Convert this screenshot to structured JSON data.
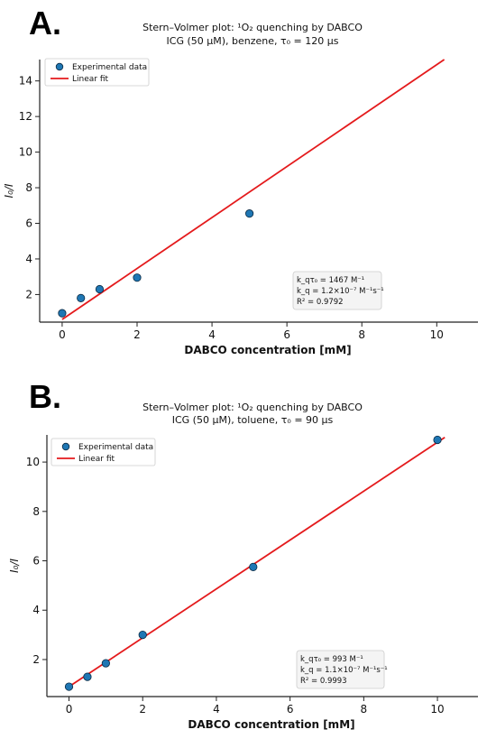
{
  "colors": {
    "points": "#1f77b4",
    "point_edge": "#0a2a44",
    "fit_line": "#e41a1c",
    "axis": "#222222",
    "legend_border": "#cccccc",
    "annotation_bg": "#f4f4f4"
  },
  "chart_data": [
    {
      "type": "scatter",
      "panel_label": "A.",
      "title_line1": "Stern–Volmer plot: ¹O₂ quenching by DABCO",
      "title_line2": "ICG (50 μM), benzene, τ₀ = 120 μs",
      "xlabel": "DABCO concentration [mM]",
      "ylabel": "I₀/I",
      "xlim": [
        -0.6,
        11.1
      ],
      "ylim": [
        0.45,
        15.2
      ],
      "xticks": [
        0,
        2,
        4,
        6,
        8,
        10
      ],
      "yticks": [
        2,
        4,
        6,
        8,
        10,
        12,
        14
      ],
      "grid": false,
      "legend_position": "top-left",
      "series": [
        {
          "name": "Experimental data",
          "kind": "scatter",
          "x": [
            0,
            0.5,
            1,
            2,
            5
          ],
          "y": [
            0.95,
            1.8,
            2.3,
            2.95,
            6.55
          ]
        },
        {
          "name": "Linear fit",
          "kind": "line",
          "x": [
            0,
            10.2
          ],
          "y": [
            0.6,
            15.2
          ]
        }
      ],
      "annotation": [
        "k_qτ₀ = 1467 M⁻¹",
        "k_q = 1.2×10⁻⁷ M⁻¹s⁻¹",
        "R² = 0.9792"
      ]
    },
    {
      "type": "scatter",
      "panel_label": "B.",
      "title_line1": "Stern–Volmer plot: ¹O₂ quenching by DABCO",
      "title_line2": "ICG (50 μM), toluene, τ₀ = 90 μs",
      "xlabel": "DABCO concentration [mM]",
      "ylabel": "I₀/I",
      "xlim": [
        -0.6,
        11.1
      ],
      "ylim": [
        0.5,
        11.1
      ],
      "xticks": [
        0,
        2,
        4,
        6,
        8,
        10
      ],
      "yticks": [
        2,
        4,
        6,
        8,
        10
      ],
      "grid": false,
      "legend_position": "top-left",
      "series": [
        {
          "name": "Experimental data",
          "kind": "scatter",
          "x": [
            0,
            0.5,
            1,
            2,
            5,
            10
          ],
          "y": [
            0.9,
            1.3,
            1.85,
            3.0,
            5.75,
            10.9
          ]
        },
        {
          "name": "Linear fit",
          "kind": "line",
          "x": [
            0,
            10.2
          ],
          "y": [
            0.9,
            11.0
          ]
        }
      ],
      "annotation": [
        "k_qτ₀ = 993 M⁻¹",
        "k_q = 1.1×10⁻⁷ M⁻¹s⁻¹",
        "R² = 0.9993"
      ]
    }
  ]
}
